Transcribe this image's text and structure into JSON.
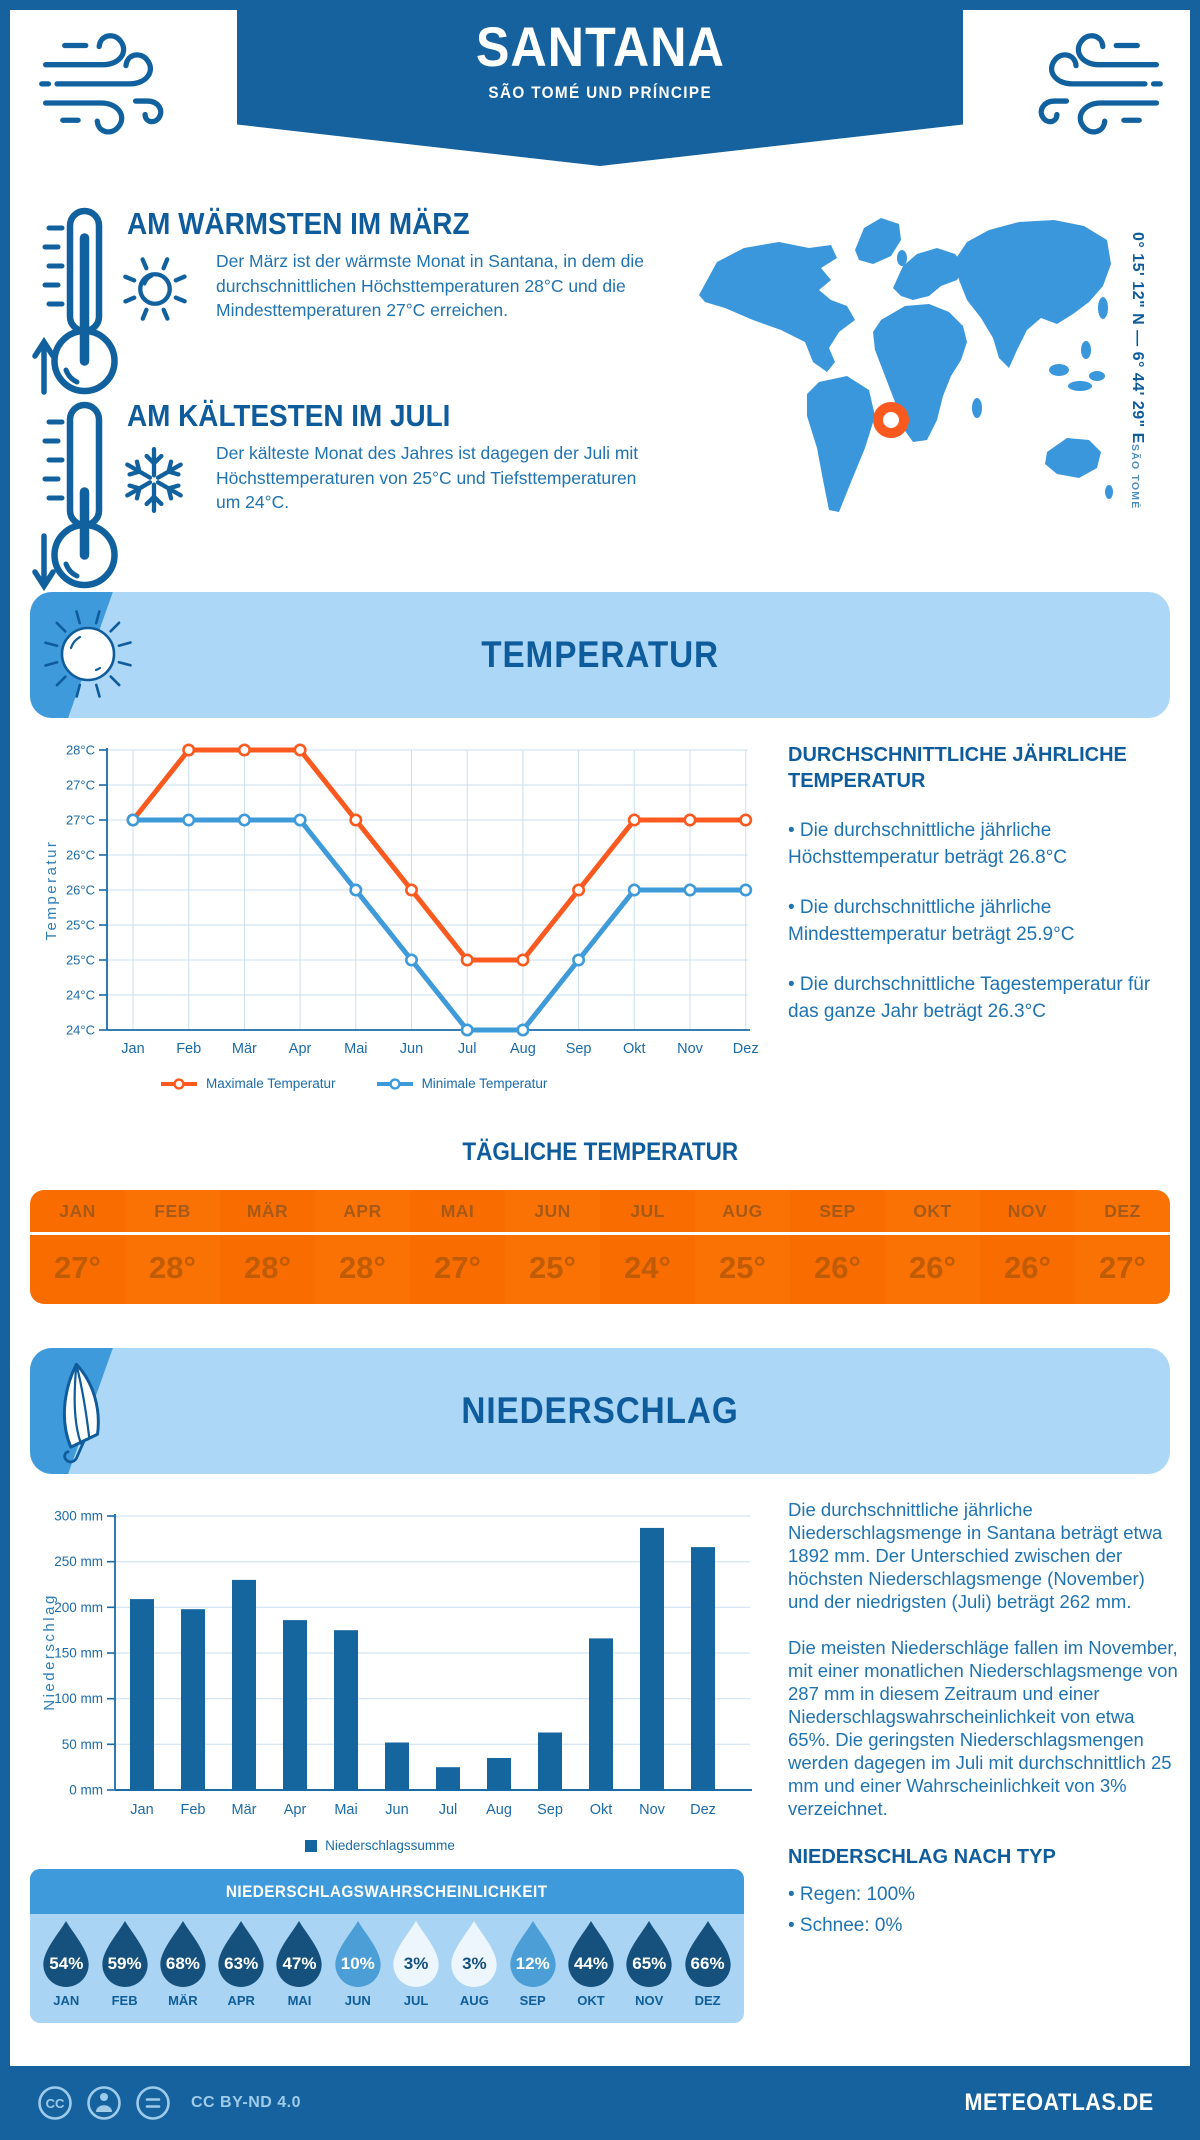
{
  "header": {
    "title": "SANTANA",
    "subtitle": "SÃO TOMÉ UND PRÍNCIPE"
  },
  "map": {
    "coordinates": "0° 15' 12\" N — 6° 44' 29\" E",
    "place": "SÃO TOMÉ"
  },
  "highlights": {
    "warmest": {
      "title": "AM WÄRMSTEN IM MÄRZ",
      "text": "Der März ist der wärmste Monat in Santana, in dem die durchschnittlichen Höchsttemperaturen 28°C und die Mindesttemperaturen 27°C erreichen."
    },
    "coldest": {
      "title": "AM KÄLTESTEN IM JULI",
      "text": "Der kälteste Monat des Jahres ist dagegen der Juli mit Höchsttemperaturen von 25°C und Tiefsttemperaturen um 24°C."
    }
  },
  "temperature": {
    "section_title": "TEMPERATUR",
    "annual_heading": "DURCHSCHNITTLICHE JÄHRLICHE TEMPERATUR",
    "annual_bullets": [
      "• Die durchschnittliche jährliche Höchsttemperatur beträgt 26.8°C",
      "• Die durchschnittliche jährliche Mindesttemperatur beträgt 25.9°C",
      "• Die durchschnittliche Tagestemperatur für das ganze Jahr beträgt 26.3°C"
    ],
    "daily_title": "TÄGLICHE TEMPERATUR",
    "daily_months": [
      "JAN",
      "FEB",
      "MÄR",
      "APR",
      "MAI",
      "JUN",
      "JUL",
      "AUG",
      "SEP",
      "OKT",
      "NOV",
      "DEZ"
    ],
    "daily_values": [
      "27°",
      "28°",
      "28°",
      "28°",
      "27°",
      "25°",
      "24°",
      "25°",
      "26°",
      "26°",
      "26°",
      "27°"
    ]
  },
  "precipitation": {
    "section_title": "NIEDERSCHLAG",
    "paragraph1": "Die durchschnittliche jährliche Niederschlagsmenge in Santana beträgt etwa 1892 mm. Der Unterschied zwischen der höchsten Niederschlagsmenge (November) und der niedrigsten (Juli) beträgt 262 mm.",
    "paragraph2": "Die meisten Niederschläge fallen im November, mit einer monatlichen Niederschlagsmenge von 287 mm in diesem Zeitraum und einer Niederschlagswahrscheinlichkeit von etwa 65%. Die geringsten Niederschlagsmengen werden dagegen im Juli mit durchschnittlich 25 mm und einer Wahrscheinlichkeit von 3% verzeichnet.",
    "by_type_heading": "NIEDERSCHLAG NACH TYP",
    "by_type_bullets": [
      "• Regen: 100%",
      "• Schnee: 0%"
    ],
    "probability": {
      "title": "NIEDERSCHLAGSWAHRSCHEINLICHKEIT",
      "months": [
        "JAN",
        "FEB",
        "MÄR",
        "APR",
        "MAI",
        "JUN",
        "JUL",
        "AUG",
        "SEP",
        "OKT",
        "NOV",
        "DEZ"
      ],
      "values_pct": [
        54,
        59,
        68,
        63,
        47,
        10,
        3,
        3,
        12,
        44,
        65,
        66
      ]
    }
  },
  "chart_data": [
    {
      "type": "line",
      "title": "",
      "categories": [
        "Jan",
        "Feb",
        "Mär",
        "Apr",
        "Mai",
        "Jun",
        "Jul",
        "Aug",
        "Sep",
        "Okt",
        "Nov",
        "Dez"
      ],
      "series": [
        {
          "name": "Maximale Temperatur",
          "color": "#FA5A1F",
          "values": [
            27,
            28,
            28,
            28,
            27,
            26,
            25,
            25,
            26,
            27,
            27,
            27
          ]
        },
        {
          "name": "Minimale Temperatur",
          "color": "#3E9AD9",
          "values": [
            27,
            27,
            27,
            27,
            26,
            25,
            24,
            24,
            25,
            26,
            26,
            26
          ]
        }
      ],
      "xlabel": "",
      "ylabel": "Temperatur",
      "ylim": [
        24,
        28
      ],
      "ytick_step": 0.5,
      "ytick_labels_top_to_bottom": [
        "28°C",
        "27°C",
        "27°C",
        "26°C",
        "26°C",
        "25°C",
        "25°C",
        "24°C",
        "24°C"
      ],
      "grid": true,
      "legend_position": "bottom"
    },
    {
      "type": "bar",
      "title": "",
      "categories": [
        "Jan",
        "Feb",
        "Mär",
        "Apr",
        "Mai",
        "Jun",
        "Jul",
        "Aug",
        "Sep",
        "Okt",
        "Nov",
        "Dez"
      ],
      "values": [
        209,
        198,
        230,
        186,
        175,
        52,
        25,
        35,
        63,
        166,
        287,
        266
      ],
      "xlabel": "",
      "ylabel": "Niederschlag",
      "ylim": [
        0,
        300
      ],
      "yticks": [
        0,
        50,
        100,
        150,
        200,
        250,
        300
      ],
      "ytick_suffix": " mm",
      "bar_color": "#15669F",
      "legend": [
        "Niederschlagssumme"
      ],
      "grid": true,
      "legend_position": "bottom"
    }
  ],
  "footer": {
    "license": "CC BY-ND 4.0",
    "brand": "METEOATLAS.DE"
  },
  "colors": {
    "primary_blue": "#15629E",
    "medium_blue": "#3F9ADB",
    "panel_light_blue": "#ACD7F6",
    "map_blue": "#3A97DB",
    "heading_blue": "#0E5C9C",
    "text_blue": "#1F73B1",
    "accent_orange": "#FA5A1F",
    "table_orange": "#F86C00",
    "bar_blue": "#15669F",
    "drop_dark": "#15517C",
    "drop_medium": "#4C9FD6",
    "drop_light": "#EDF6FD"
  }
}
